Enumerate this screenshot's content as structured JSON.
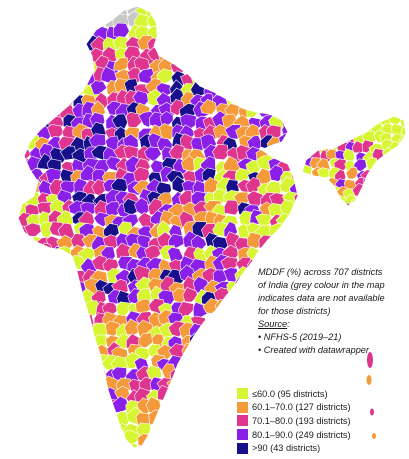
{
  "caption": {
    "description": "MDDF (%) across 707 districts of India (grey colour in the map indicates data are not available for those districts)",
    "description_lines": [
      "MDDF (%) across 707 districts",
      "of India (grey colour in the map",
      "indicates data are not available",
      "for those districts)"
    ],
    "source_label": "Source",
    "source_colon": ":",
    "source_items": [
      "• NFHS-5 (2019–21)",
      "• Created with datawrapper"
    ]
  },
  "legend": [
    {
      "label": "≤60.0 (95 districts)",
      "color": "#d8f533"
    },
    {
      "label": "60.1–70.0 (127 districts)",
      "color": "#f59a3a"
    },
    {
      "label": "70.1–80.0 (193 districts)",
      "color": "#e0358f"
    },
    {
      "label": "80.1–90.0 (249 districts)",
      "color": "#8a1fe8"
    },
    {
      "label": ">90 (43 districts)",
      "color": "#17108a"
    }
  ],
  "no_data_color": "#c8c8c8"
}
